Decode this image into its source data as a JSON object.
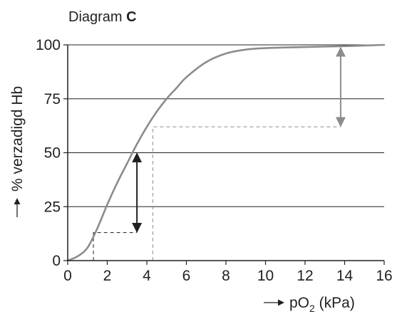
{
  "chart_data": {
    "type": "line",
    "title": {
      "prefix": "Diagram ",
      "bold": "C"
    },
    "xlabel": {
      "main": "pO",
      "sub": "2",
      "unit": " (kPa)"
    },
    "ylabel": "% verzadigd Hb",
    "xlim": [
      0,
      16
    ],
    "ylim": [
      0,
      100
    ],
    "x_ticks": [
      0,
      2,
      4,
      6,
      8,
      10,
      12,
      14,
      16
    ],
    "y_ticks": [
      0,
      25,
      50,
      75,
      100
    ],
    "horizontal_gridlines": [
      25,
      50,
      75,
      100
    ],
    "series": [
      {
        "color": "#8c8c8c",
        "x": [
          0,
          0.5,
          1,
          1.5,
          2,
          2.5,
          3,
          3.5,
          4,
          4.5,
          5,
          5.5,
          6,
          7,
          8,
          9,
          10,
          12,
          14,
          16
        ],
        "y": [
          0,
          2,
          6,
          15,
          26,
          36,
          45,
          54,
          62,
          69,
          75,
          80,
          85,
          92,
          96,
          97.8,
          98.5,
          99,
          99.4,
          100
        ]
      }
    ],
    "annotations": [
      {
        "kind": "dashed-line",
        "color": "#231f20",
        "points": [
          [
            1.3,
            0
          ],
          [
            1.3,
            13
          ],
          [
            3.5,
            13
          ]
        ]
      },
      {
        "kind": "double-arrow",
        "color": "#231f20",
        "x": 3.5,
        "y_from": 13,
        "y_to": 50
      },
      {
        "kind": "dashed-line",
        "color": "#8c8c8c",
        "points": [
          [
            4.3,
            0
          ],
          [
            4.3,
            62
          ],
          [
            13.8,
            62
          ]
        ]
      },
      {
        "kind": "double-arrow",
        "color": "#8c8c8c",
        "x": 13.8,
        "y_from": 62,
        "y_to": 99
      }
    ]
  },
  "colors": {
    "axis": "#231f20",
    "grid": "#231f20",
    "curve": "#8c8c8c"
  }
}
